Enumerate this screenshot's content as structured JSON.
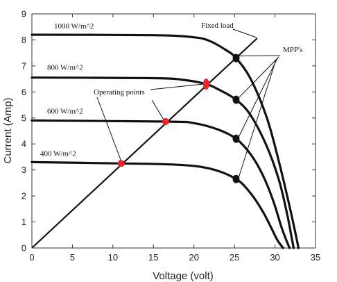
{
  "chart_data": {
    "type": "line",
    "xlabel": "Voltage (volt)",
    "ylabel": "Current (Amp)",
    "xlim": [
      0,
      35
    ],
    "ylim": [
      0,
      9
    ],
    "xticks": [
      0,
      5,
      10,
      15,
      20,
      25,
      30,
      35
    ],
    "yticks": [
      0,
      1,
      2,
      3,
      4,
      5,
      6,
      7,
      8,
      9
    ],
    "grid": false,
    "series": [
      {
        "name": "1000 W/m^2",
        "isc": 8.2,
        "voc": 32.9,
        "points": [
          [
            0,
            8.2
          ],
          [
            15,
            8.18
          ],
          [
            20,
            8.1
          ],
          [
            22,
            7.95
          ],
          [
            24,
            7.6
          ],
          [
            25.2,
            7.3
          ],
          [
            27,
            6.5
          ],
          [
            29,
            5.0
          ],
          [
            30.5,
            3.3
          ],
          [
            31.8,
            1.6
          ],
          [
            32.5,
            0.6
          ],
          [
            32.9,
            0
          ]
        ]
      },
      {
        "name": "800 W/m^2",
        "isc": 6.55,
        "voc": 32.3,
        "points": [
          [
            0,
            6.55
          ],
          [
            15,
            6.53
          ],
          [
            19,
            6.45
          ],
          [
            21.5,
            6.3
          ],
          [
            23,
            6.1
          ],
          [
            25.2,
            5.7
          ],
          [
            27,
            5.1
          ],
          [
            29,
            3.9
          ],
          [
            30.5,
            2.6
          ],
          [
            31.5,
            1.3
          ],
          [
            32.0,
            0.5
          ],
          [
            32.3,
            0
          ]
        ]
      },
      {
        "name": "600 W/m^2",
        "isc": 4.9,
        "voc": 31.8,
        "points": [
          [
            0,
            4.9
          ],
          [
            16.5,
            4.86
          ],
          [
            20,
            4.8
          ],
          [
            23,
            4.55
          ],
          [
            25.2,
            4.2
          ],
          [
            27,
            3.6
          ],
          [
            28.5,
            2.8
          ],
          [
            29.8,
            1.8
          ],
          [
            30.8,
            0.8
          ],
          [
            31.4,
            0.3
          ],
          [
            31.8,
            0
          ]
        ]
      },
      {
        "name": "400 W/m^2",
        "isc": 3.3,
        "voc": 31.0,
        "points": [
          [
            0,
            3.3
          ],
          [
            11,
            3.25
          ],
          [
            18,
            3.2
          ],
          [
            22,
            3.05
          ],
          [
            25.2,
            2.65
          ],
          [
            27,
            2.1
          ],
          [
            28.5,
            1.4
          ],
          [
            29.5,
            0.8
          ],
          [
            30.3,
            0.3
          ],
          [
            31.0,
            0
          ]
        ]
      }
    ],
    "fixed_load_line": {
      "slope": 0.29,
      "x_end": 27.8
    },
    "operating_points": [
      [
        11,
        3.25
      ],
      [
        16.5,
        4.86
      ],
      [
        21.5,
        6.3
      ],
      [
        25.2,
        7.3
      ]
    ],
    "mpp_points": [
      [
        25.2,
        7.3
      ],
      [
        25.2,
        5.7
      ],
      [
        25.2,
        4.2
      ],
      [
        25.2,
        2.65
      ]
    ],
    "annotations": {
      "operating_points": "Operating points",
      "mpp": "MPP's",
      "fixed_load": "Fixed load"
    },
    "colors": {
      "curve": "#111111",
      "operating_point": "#e8262a",
      "mpp_point": "#111111"
    }
  }
}
